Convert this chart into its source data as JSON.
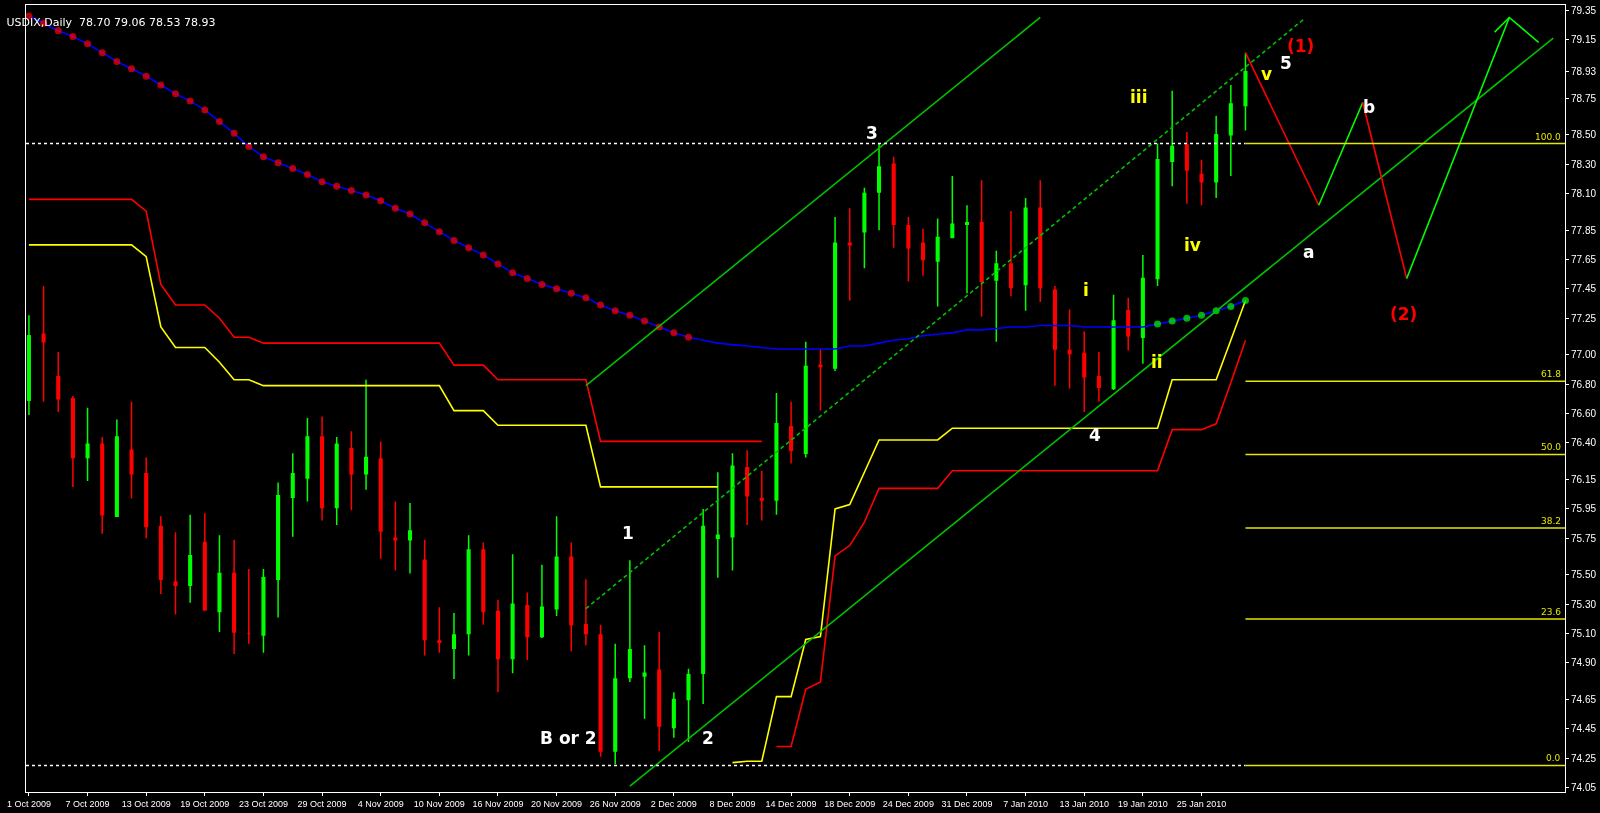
{
  "chart_data": {
    "type": "candlestick",
    "title": "USDIX,Daily  78.70 79.06 78.53 78.93",
    "categories": [
      "1 Oct 2009",
      null,
      null,
      null,
      "7 Oct 2009",
      null,
      null,
      null,
      "13 Oct 2009",
      null,
      null,
      null,
      "19 Oct 2009",
      null,
      null,
      null,
      "23 Oct 2009",
      null,
      null,
      null,
      "29 Oct 2009",
      null,
      null,
      null,
      "4 Nov 2009",
      null,
      null,
      null,
      "10 Nov 2009",
      null,
      null,
      null,
      "16 Nov 2009",
      null,
      null,
      null,
      "20 Nov 2009",
      null,
      null,
      null,
      "26 Nov 2009",
      null,
      null,
      null,
      "2 Dec 2009",
      null,
      null,
      null,
      "8 Dec 2009",
      null,
      null,
      null,
      "14 Dec 2009",
      null,
      null,
      null,
      "18 Dec 2009",
      null,
      null,
      null,
      "24 Dec 2009",
      null,
      null,
      null,
      "31 Dec 2009",
      null,
      null,
      null,
      "7 Jan 2010",
      null,
      null,
      null,
      "13 Jan 2010",
      null,
      null,
      null,
      "19 Jan 2010",
      null,
      null,
      null,
      "25 Jan 2010",
      null,
      null,
      null,
      null,
      null,
      null,
      null,
      null,
      null,
      null,
      null,
      null,
      null,
      null,
      null,
      null,
      null,
      null,
      null,
      null,
      null,
      null,
      null,
      null
    ],
    "ohlc": [
      [
        76.69,
        77.27,
        76.59,
        77.13
      ],
      [
        77.14,
        77.47,
        76.68,
        77.09
      ],
      [
        76.85,
        77.02,
        76.61,
        76.7
      ],
      [
        76.7,
        76.72,
        76.1,
        76.3
      ],
      [
        76.3,
        76.64,
        76.14,
        76.39
      ],
      [
        76.39,
        76.44,
        75.78,
        75.91
      ],
      [
        75.9,
        76.56,
        75.9,
        76.44
      ],
      [
        76.35,
        76.68,
        76.02,
        76.19
      ],
      [
        76.19,
        76.3,
        75.75,
        75.83
      ],
      [
        75.83,
        75.9,
        75.37,
        75.47
      ],
      [
        75.45,
        75.79,
        75.23,
        75.43
      ],
      [
        75.43,
        75.91,
        75.31,
        75.63
      ],
      [
        75.72,
        75.92,
        75.26,
        75.26
      ],
      [
        75.25,
        75.77,
        75.11,
        75.51
      ],
      [
        75.51,
        75.74,
        74.96,
        75.11
      ],
      [
        75.1,
        75.54,
        75.03,
        75.1
      ],
      [
        75.09,
        75.54,
        74.97,
        75.48
      ],
      [
        75.47,
        76.13,
        75.21,
        76.04
      ],
      [
        76.03,
        76.33,
        75.76,
        76.19
      ],
      [
        76.16,
        76.57,
        76.0,
        76.44
      ],
      [
        76.44,
        76.58,
        75.87,
        75.96
      ],
      [
        75.96,
        76.44,
        75.84,
        76.39
      ],
      [
        76.36,
        76.48,
        75.94,
        76.19
      ],
      [
        76.19,
        76.83,
        76.08,
        76.3
      ],
      [
        76.29,
        76.41,
        75.61,
        75.8
      ],
      [
        75.75,
        76.0,
        75.53,
        75.74
      ],
      [
        75.74,
        75.99,
        75.51,
        75.8
      ],
      [
        75.6,
        75.74,
        74.95,
        75.06
      ],
      [
        75.05,
        75.28,
        74.97,
        75.04
      ],
      [
        75.0,
        75.24,
        74.79,
        75.09
      ],
      [
        75.1,
        75.77,
        74.95,
        75.67
      ],
      [
        75.67,
        75.72,
        75.16,
        75.25
      ],
      [
        75.25,
        75.33,
        74.7,
        74.93
      ],
      [
        74.93,
        75.64,
        74.83,
        75.3
      ],
      [
        75.29,
        75.38,
        74.92,
        75.08
      ],
      [
        75.08,
        75.57,
        75.07,
        75.28
      ],
      [
        75.27,
        75.9,
        75.22,
        75.62
      ],
      [
        75.62,
        75.72,
        74.98,
        75.16
      ],
      [
        75.16,
        75.47,
        75.02,
        75.1
      ],
      [
        75.09,
        75.16,
        74.26,
        74.3
      ],
      [
        74.3,
        75.03,
        74.21,
        74.79
      ],
      [
        74.8,
        75.6,
        74.77,
        74.99
      ],
      [
        74.81,
        75.02,
        74.52,
        74.83
      ],
      [
        74.85,
        75.11,
        74.3,
        74.47
      ],
      [
        74.46,
        74.7,
        74.39,
        74.65
      ],
      [
        74.65,
        74.86,
        74.36,
        74.82
      ],
      [
        74.83,
        75.95,
        74.62,
        75.83
      ],
      [
        75.75,
        76.2,
        75.48,
        75.77
      ],
      [
        75.76,
        76.33,
        75.53,
        76.24
      ],
      [
        76.23,
        76.35,
        75.84,
        76.04
      ],
      [
        76.02,
        76.21,
        75.87,
        76.01
      ],
      [
        76.01,
        76.74,
        75.91,
        76.53
      ],
      [
        76.51,
        76.68,
        76.26,
        76.35
      ],
      [
        76.33,
        77.09,
        76.3,
        76.92
      ],
      [
        76.93,
        77.04,
        76.62,
        76.92
      ],
      [
        76.91,
        77.94,
        76.89,
        77.76
      ],
      [
        77.76,
        78.0,
        77.37,
        77.75
      ],
      [
        77.84,
        78.14,
        77.59,
        78.1
      ],
      [
        78.11,
        78.44,
        77.85,
        78.28
      ],
      [
        78.3,
        78.35,
        77.73,
        77.89
      ],
      [
        77.88,
        77.94,
        77.5,
        77.73
      ],
      [
        77.76,
        77.86,
        77.54,
        77.65
      ],
      [
        77.64,
        77.93,
        77.33,
        77.8
      ],
      [
        77.8,
        78.22,
        77.8,
        77.89
      ],
      [
        77.89,
        78.02,
        77.42,
        77.9
      ],
      [
        77.9,
        78.19,
        77.26,
        77.5
      ],
      [
        77.51,
        77.71,
        77.09,
        77.62
      ],
      [
        77.62,
        77.98,
        77.4,
        77.46
      ],
      [
        77.48,
        78.07,
        77.3,
        78.0
      ],
      [
        78.0,
        78.19,
        77.36,
        77.46
      ],
      [
        77.44,
        77.47,
        76.79,
        77.04
      ],
      [
        77.03,
        77.31,
        76.77,
        77.01
      ],
      [
        77.01,
        77.16,
        76.61,
        76.85
      ],
      [
        76.85,
        77.02,
        76.68,
        76.78
      ],
      [
        76.77,
        77.41,
        76.76,
        77.23
      ],
      [
        77.3,
        77.39,
        77.03,
        77.13
      ],
      [
        77.12,
        77.68,
        76.94,
        77.52
      ],
      [
        77.52,
        78.44,
        77.47,
        78.33
      ],
      [
        78.32,
        78.8,
        78.15,
        78.42
      ],
      [
        78.43,
        78.52,
        78.03,
        78.26
      ],
      [
        78.23,
        78.33,
        78.02,
        78.18
      ],
      [
        78.18,
        78.63,
        78.07,
        78.5
      ],
      [
        78.5,
        78.84,
        78.22,
        78.71
      ],
      [
        78.7,
        79.06,
        78.53,
        78.93
      ],
      null,
      null,
      null,
      null,
      null,
      null,
      null,
      null,
      null,
      null,
      null,
      null,
      null,
      null,
      null,
      null,
      null,
      null,
      null,
      null,
      null
    ],
    "colors": [
      "#00ff00",
      "#ff0000",
      "#ff0000",
      "#ff0000",
      "#00ff00",
      "#ff0000",
      "#00ff00",
      "#ff0000",
      "#ff0000",
      "#ff0000",
      "#ff0000",
      "#00ff00",
      "#ff0000",
      "#00ff00",
      "#ff0000",
      "#ff0000",
      "#00ff00",
      "#00ff00",
      "#00ff00",
      "#00ff00",
      "#ff0000",
      "#00ff00",
      "#ff0000",
      "#00ff00",
      "#ff0000",
      "#ff0000",
      "#00ff00",
      "#ff0000",
      "#ff0000",
      "#00ff00",
      "#00ff00",
      "#ff0000",
      "#ff0000",
      "#00ff00",
      "#ff0000",
      "#00ff00",
      "#00ff00",
      "#ff0000",
      "#ff0000",
      "#ff0000",
      "#00ff00",
      "#00ff00",
      "#00ff00",
      "#ff0000",
      "#00ff00",
      "#00ff00",
      "#00ff00",
      "#00ff00",
      "#00ff00",
      "#ff0000",
      "#ff0000",
      "#00ff00",
      "#ff0000",
      "#00ff00",
      "#ff0000",
      "#00ff00",
      "#ff0000",
      "#00ff00",
      "#00ff00",
      "#ff0000",
      "#ff0000",
      "#ff0000",
      "#00ff00",
      "#00ff00",
      "#00ff00",
      "#ff0000",
      "#00ff00",
      "#ff0000",
      "#00ff00",
      "#ff0000",
      "#ff0000",
      "#ff0000",
      "#ff0000",
      "#ff0000",
      "#00ff00",
      "#ff0000",
      "#00ff00",
      "#00ff00",
      "#00ff00",
      "#ff0000",
      "#ff0000",
      "#00ff00",
      "#00ff00",
      "#00ff00",
      null,
      null,
      null,
      null,
      null,
      null,
      null,
      null,
      null,
      null,
      null,
      null,
      null,
      null,
      null,
      null,
      null,
      null,
      null,
      null,
      null
    ],
    "series": [
      {
        "type": "line",
        "color": "#ff0000",
        "values": [
          78.06,
          78.06,
          78.06,
          78.06,
          78.06,
          78.06,
          78.06,
          78.06,
          77.98,
          77.48,
          77.34,
          77.34,
          77.34,
          77.25,
          77.12,
          77.12,
          77.08,
          77.08,
          77.08,
          77.08,
          77.08,
          77.08,
          77.08,
          77.08,
          77.08,
          77.08,
          77.08,
          77.08,
          77.08,
          76.93,
          76.93,
          76.93,
          76.83,
          76.83,
          76.83,
          76.83,
          76.83,
          76.83,
          76.83,
          76.41,
          76.41,
          76.41,
          76.41,
          76.41,
          76.41,
          76.41,
          76.41,
          76.41,
          76.41,
          76.41,
          76.41,
          null,
          null,
          null,
          null,
          null,
          null,
          null,
          null,
          null,
          null,
          null,
          null,
          null,
          null,
          null,
          null,
          null,
          null,
          null,
          null,
          null,
          null,
          null,
          null,
          null,
          null,
          null,
          null,
          null,
          null,
          null,
          null,
          null,
          null,
          null,
          null,
          null,
          null,
          null,
          null,
          null,
          null,
          null,
          null,
          null,
          null,
          null,
          null,
          null,
          null,
          null,
          null,
          null,
          null
        ]
      },
      {
        "type": "line",
        "color": "#ff0000",
        "values": [
          null,
          null,
          null,
          null,
          null,
          null,
          null,
          null,
          null,
          null,
          null,
          null,
          null,
          null,
          null,
          null,
          null,
          null,
          null,
          null,
          null,
          null,
          null,
          null,
          null,
          null,
          null,
          null,
          null,
          null,
          null,
          null,
          null,
          null,
          null,
          null,
          null,
          null,
          null,
          null,
          null,
          null,
          null,
          null,
          null,
          null,
          null,
          null,
          null,
          null,
          null,
          74.33,
          74.33,
          74.72,
          74.77,
          75.63,
          75.7,
          75.86,
          76.09,
          76.09,
          76.09,
          76.09,
          76.09,
          76.21,
          76.21,
          76.21,
          76.21,
          76.21,
          76.21,
          76.21,
          76.21,
          76.21,
          76.21,
          76.21,
          76.21,
          76.21,
          76.21,
          76.21,
          76.49,
          76.49,
          76.49,
          76.53,
          76.81,
          77.1,
          null,
          null,
          null,
          null,
          null,
          null,
          null,
          null,
          null,
          null,
          null,
          null,
          null,
          null,
          null,
          null,
          null,
          null,
          null,
          null,
          null
        ]
      },
      {
        "type": "line",
        "color": "#ffff00",
        "values": [
          77.75,
          77.75,
          77.75,
          77.75,
          77.75,
          77.75,
          77.75,
          77.75,
          77.67,
          77.19,
          77.05,
          77.05,
          77.05,
          76.95,
          76.83,
          76.83,
          76.79,
          76.79,
          76.79,
          76.79,
          76.79,
          76.79,
          76.79,
          76.79,
          76.79,
          76.79,
          76.79,
          76.79,
          76.79,
          76.62,
          76.62,
          76.62,
          76.52,
          76.52,
          76.52,
          76.52,
          76.52,
          76.52,
          76.52,
          76.1,
          76.1,
          76.1,
          76.1,
          76.1,
          76.1,
          76.1,
          76.1,
          76.1,
          null,
          null,
          null,
          null,
          null,
          null,
          null,
          null,
          null,
          null,
          null,
          null,
          null,
          null,
          null,
          null,
          null,
          null,
          null,
          null,
          null,
          null,
          null,
          null,
          null,
          null,
          null,
          null,
          null,
          null,
          null,
          null,
          null,
          null,
          null,
          null,
          null,
          null,
          null,
          null,
          null,
          null,
          null,
          null,
          null,
          null,
          null,
          null,
          null,
          null,
          null,
          null,
          null,
          null,
          null,
          null,
          null
        ]
      },
      {
        "type": "line",
        "color": "#ffff00",
        "values": [
          null,
          null,
          null,
          null,
          null,
          null,
          null,
          null,
          null,
          null,
          null,
          null,
          null,
          null,
          null,
          null,
          null,
          null,
          null,
          null,
          null,
          null,
          null,
          null,
          null,
          null,
          null,
          null,
          null,
          null,
          null,
          null,
          null,
          null,
          null,
          null,
          null,
          null,
          null,
          null,
          null,
          null,
          null,
          null,
          null,
          null,
          null,
          null,
          74.22,
          74.23,
          74.23,
          74.67,
          74.67,
          75.06,
          75.08,
          75.95,
          75.98,
          76.2,
          76.42,
          76.42,
          76.42,
          76.42,
          76.42,
          76.5,
          76.5,
          76.5,
          76.5,
          76.5,
          76.5,
          76.5,
          76.5,
          76.5,
          76.5,
          76.5,
          76.5,
          76.5,
          76.5,
          76.5,
          76.83,
          76.83,
          76.83,
          76.83,
          77.1,
          77.37,
          null,
          null,
          null,
          null,
          null,
          null,
          null,
          null,
          null,
          null,
          null,
          null,
          null,
          null,
          null,
          null,
          null,
          null,
          null,
          null,
          null
        ]
      },
      {
        "type": "line",
        "color": "#0000ff",
        "marker": "circle",
        "values": [
          79.31,
          79.26,
          79.21,
          79.17,
          79.12,
          79.06,
          79.0,
          78.95,
          78.9,
          78.84,
          78.78,
          78.73,
          78.67,
          78.59,
          78.51,
          78.42,
          78.35,
          78.31,
          78.27,
          78.23,
          78.18,
          78.15,
          78.12,
          78.09,
          78.05,
          78.0,
          77.96,
          77.9,
          77.84,
          77.78,
          77.73,
          77.68,
          77.62,
          77.56,
          77.52,
          77.48,
          77.45,
          77.42,
          77.39,
          77.34,
          77.3,
          77.27,
          77.23,
          77.19,
          77.15,
          77.12,
          77.1,
          77.08,
          77.07,
          77.06,
          77.05,
          77.04,
          77.04,
          77.04,
          77.04,
          77.04,
          77.06,
          77.06,
          77.08,
          77.1,
          77.11,
          77.13,
          77.14,
          77.15,
          77.17,
          77.17,
          77.18,
          77.19,
          77.19,
          77.2,
          77.2,
          77.2,
          77.19,
          77.19,
          77.19,
          77.19,
          77.19,
          77.21,
          77.23,
          77.25,
          77.27,
          77.3,
          77.33,
          77.37,
          null,
          null,
          null,
          null,
          null,
          null,
          null,
          null,
          null,
          null,
          null,
          null,
          null,
          null,
          null,
          null,
          null,
          null,
          null,
          null,
          null
        ],
        "colors": [
          "#ff0000",
          "#ff0000",
          "#ff0000",
          "#ff0000",
          "#ff0000",
          "#ff0000",
          "#ff0000",
          "#ff0000",
          "#ff0000",
          "#ff0000",
          "#ff0000",
          "#ff0000",
          "#ff0000",
          "#ff0000",
          "#ff0000",
          "#ff0000",
          "#ff0000",
          "#ff0000",
          "#ff0000",
          "#ff0000",
          "#ff0000",
          "#ff0000",
          "#ff0000",
          "#ff0000",
          "#ff0000",
          "#ff0000",
          "#ff0000",
          "#ff0000",
          "#ff0000",
          "#ff0000",
          "#ff0000",
          "#ff0000",
          "#ff0000",
          "#ff0000",
          "#ff0000",
          "#ff0000",
          "#ff0000",
          "#ff0000",
          "#ff0000",
          "#ff0000",
          "#ff0000",
          "#ff0000",
          "#ff0000",
          "#ff0000",
          "#ff0000",
          "#ff0000",
          null,
          null,
          null,
          null,
          null,
          null,
          null,
          null,
          null,
          null,
          null,
          null,
          null,
          null,
          null,
          null,
          null,
          null,
          null,
          null,
          null,
          null,
          null,
          null,
          null,
          null,
          null,
          null,
          null,
          null,
          null,
          "#00ff00",
          "#00ff00",
          "#00ff00",
          "#00ff00",
          "#00ff00",
          "#00ff00",
          "#00ff00",
          null,
          null,
          null,
          null,
          null,
          null,
          null,
          null,
          null,
          null,
          null,
          null,
          null,
          null,
          null,
          null,
          null,
          null,
          null,
          null,
          null
        ]
      },
      {
        "type": "line",
        "color": "#00c000",
        "values": [
          null,
          null,
          null,
          null,
          null,
          null,
          null,
          null,
          null,
          null,
          null,
          null,
          null,
          null,
          null,
          null,
          null,
          null,
          null,
          null,
          null,
          null,
          null,
          null,
          null,
          null,
          null,
          null,
          null,
          null,
          null,
          null,
          null,
          null,
          null,
          null,
          null,
          null,
          76.79,
          null,
          null,
          null,
          null,
          null,
          null,
          null,
          null,
          null,
          null,
          null,
          null,
          null,
          null,
          null,
          null,
          null,
          null,
          null,
          null,
          null,
          null,
          null,
          null,
          null,
          null,
          null,
          null,
          null,
          null,
          79.3,
          null,
          null,
          null,
          null,
          null,
          null,
          null,
          null,
          null,
          null,
          null,
          null,
          null,
          null,
          null,
          null,
          null,
          null,
          null,
          null,
          null,
          null,
          null,
          null,
          null,
          null,
          null,
          null,
          null,
          null,
          null,
          null,
          null,
          null,
          null
        ]
      },
      {
        "type": "line",
        "color": "#00c000",
        "values": [
          null,
          null,
          null,
          null,
          null,
          null,
          null,
          null,
          null,
          null,
          null,
          null,
          null,
          null,
          null,
          null,
          null,
          null,
          null,
          null,
          null,
          null,
          null,
          null,
          null,
          null,
          null,
          null,
          null,
          null,
          null,
          null,
          null,
          null,
          null,
          null,
          null,
          null,
          null,
          null,
          null,
          74.06,
          null,
          null,
          null,
          null,
          null,
          null,
          null,
          null,
          null,
          null,
          null,
          null,
          null,
          null,
          null,
          null,
          null,
          null,
          null,
          null,
          null,
          null,
          null,
          null,
          null,
          null,
          null,
          null,
          null,
          null,
          null,
          null,
          null,
          null,
          null,
          null,
          null,
          null,
          null,
          null,
          null,
          null,
          null,
          null,
          null,
          null,
          null,
          null,
          null,
          null,
          null,
          null,
          null,
          null,
          null,
          null,
          null,
          null,
          null,
          null,
          null,
          null,
          79.16
        ]
      },
      {
        "type": "line",
        "color": "#00c000",
        "line_style": "dashed",
        "values": [
          null,
          null,
          null,
          null,
          null,
          null,
          null,
          null,
          null,
          null,
          null,
          null,
          null,
          null,
          null,
          null,
          null,
          null,
          null,
          null,
          null,
          null,
          null,
          null,
          null,
          null,
          null,
          null,
          null,
          null,
          null,
          null,
          null,
          null,
          null,
          null,
          null,
          null,
          75.27,
          null,
          null,
          null,
          null,
          null,
          null,
          null,
          null,
          null,
          null,
          null,
          null,
          null,
          null,
          null,
          null,
          null,
          null,
          null,
          null,
          null,
          null,
          null,
          null,
          null,
          null,
          null,
          null,
          null,
          null,
          null,
          null,
          null,
          null,
          null,
          null,
          null,
          null,
          null,
          null,
          null,
          null,
          null,
          null,
          null,
          null,
          null,
          null,
          79.29,
          null,
          null,
          null,
          null,
          null,
          null,
          null,
          null,
          null,
          null,
          null,
          null,
          null,
          null,
          null,
          null,
          null
        ]
      },
      {
        "type": "line",
        "color": "#ff0000",
        "values": [
          null,
          null,
          null,
          null,
          null,
          null,
          null,
          null,
          null,
          null,
          null,
          null,
          null,
          null,
          null,
          null,
          null,
          null,
          null,
          null,
          null,
          null,
          null,
          null,
          null,
          null,
          null,
          null,
          null,
          null,
          null,
          null,
          null,
          null,
          null,
          null,
          null,
          null,
          null,
          null,
          null,
          null,
          null,
          null,
          null,
          null,
          null,
          null,
          null,
          null,
          null,
          null,
          null,
          null,
          null,
          null,
          null,
          null,
          null,
          null,
          null,
          null,
          null,
          null,
          null,
          null,
          null,
          null,
          null,
          null,
          null,
          null,
          null,
          null,
          null,
          null,
          null,
          null,
          null,
          null,
          null,
          null,
          null,
          79.06,
          null,
          null,
          null,
          null,
          78.02,
          null,
          null,
          null,
          null,
          null,
          null,
          null,
          null,
          null,
          null,
          null,
          null,
          null,
          null,
          null,
          null
        ]
      },
      {
        "type": "line",
        "color": "#00ff00",
        "values": [
          null,
          null,
          null,
          null,
          null,
          null,
          null,
          null,
          null,
          null,
          null,
          null,
          null,
          null,
          null,
          null,
          null,
          null,
          null,
          null,
          null,
          null,
          null,
          null,
          null,
          null,
          null,
          null,
          null,
          null,
          null,
          null,
          null,
          null,
          null,
          null,
          null,
          null,
          null,
          null,
          null,
          null,
          null,
          null,
          null,
          null,
          null,
          null,
          null,
          null,
          null,
          null,
          null,
          null,
          null,
          null,
          null,
          null,
          null,
          null,
          null,
          null,
          null,
          null,
          null,
          null,
          null,
          null,
          null,
          null,
          null,
          null,
          null,
          null,
          null,
          null,
          null,
          null,
          null,
          null,
          null,
          null,
          null,
          null,
          null,
          null,
          null,
          null,
          78.02,
          null,
          null,
          78.72,
          null,
          null,
          null,
          null,
          null,
          null,
          null,
          null,
          null,
          null,
          null,
          null,
          null
        ]
      },
      {
        "type": "line",
        "color": "#ff0000",
        "values": [
          null,
          null,
          null,
          null,
          null,
          null,
          null,
          null,
          null,
          null,
          null,
          null,
          null,
          null,
          null,
          null,
          null,
          null,
          null,
          null,
          null,
          null,
          null,
          null,
          null,
          null,
          null,
          null,
          null,
          null,
          null,
          null,
          null,
          null,
          null,
          null,
          null,
          null,
          null,
          null,
          null,
          null,
          null,
          null,
          null,
          null,
          null,
          null,
          null,
          null,
          null,
          null,
          null,
          null,
          null,
          null,
          null,
          null,
          null,
          null,
          null,
          null,
          null,
          null,
          null,
          null,
          null,
          null,
          null,
          null,
          null,
          null,
          null,
          null,
          null,
          null,
          null,
          null,
          null,
          null,
          null,
          null,
          null,
          null,
          null,
          null,
          null,
          null,
          null,
          null,
          null,
          78.72,
          null,
          null,
          77.52,
          null,
          null,
          null,
          null,
          null,
          null,
          null,
          null,
          null,
          null
        ]
      },
      {
        "type": "line",
        "color": "#00ff00",
        "values": [
          null,
          null,
          null,
          null,
          null,
          null,
          null,
          null,
          null,
          null,
          null,
          null,
          null,
          null,
          null,
          null,
          null,
          null,
          null,
          null,
          null,
          null,
          null,
          null,
          null,
          null,
          null,
          null,
          null,
          null,
          null,
          null,
          null,
          null,
          null,
          null,
          null,
          null,
          null,
          null,
          null,
          null,
          null,
          null,
          null,
          null,
          null,
          null,
          null,
          null,
          null,
          null,
          null,
          null,
          null,
          null,
          null,
          null,
          null,
          null,
          null,
          null,
          null,
          null,
          null,
          null,
          null,
          null,
          null,
          null,
          null,
          null,
          null,
          null,
          null,
          null,
          null,
          null,
          null,
          null,
          null,
          null,
          null,
          null,
          null,
          null,
          null,
          null,
          null,
          null,
          null,
          null,
          null,
          null,
          77.52,
          null,
          null,
          null,
          null,
          null,
          null,
          79.3,
          null,
          null,
          null
        ]
      },
      {
        "type": "line",
        "color": "#00ff00",
        "values": [
          null,
          null,
          null,
          null,
          null,
          null,
          null,
          null,
          null,
          null,
          null,
          null,
          null,
          null,
          null,
          null,
          null,
          null,
          null,
          null,
          null,
          null,
          null,
          null,
          null,
          null,
          null,
          null,
          null,
          null,
          null,
          null,
          null,
          null,
          null,
          null,
          null,
          null,
          null,
          null,
          null,
          null,
          null,
          null,
          null,
          null,
          null,
          null,
          null,
          null,
          null,
          null,
          null,
          null,
          null,
          null,
          null,
          null,
          null,
          null,
          null,
          null,
          null,
          null,
          null,
          null,
          null,
          null,
          null,
          null,
          null,
          null,
          null,
          null,
          null,
          null,
          null,
          null,
          null,
          null,
          null,
          null,
          null,
          null,
          null,
          null,
          null,
          null,
          null,
          null,
          null,
          null,
          null,
          null,
          null,
          null,
          null,
          null,
          null,
          null,
          79.2,
          79.3,
          null,
          79.13,
          null
        ]
      }
    ],
    "ylim": [
      74.02,
      79.385
    ],
    "yticks": [
      {
        "value": 79.35,
        "label": "79.35"
      },
      79.15,
      78.93,
      78.75,
      {
        "value": 78.5,
        "label": "78.50"
      },
      {
        "value": 78.3,
        "label": "78.30"
      },
      {
        "value": 78.1,
        "label": "78.10"
      },
      77.85,
      77.65,
      77.45,
      77.25,
      {
        "value": 77.0,
        "label": "77.00"
      },
      {
        "value": 76.8,
        "label": "76.80"
      },
      {
        "value": 76.6,
        "label": "76.60"
      },
      {
        "value": 76.4,
        "label": "76.40"
      },
      76.15,
      75.95,
      75.75,
      {
        "value": 75.5,
        "label": "75.50"
      },
      {
        "value": 75.3,
        "label": "75.30"
      },
      {
        "value": 75.1,
        "label": "75.10"
      },
      {
        "value": 74.9,
        "label": "74.90"
      },
      74.65,
      74.45,
      74.25,
      74.05
    ],
    "ref_lines": [
      {
        "axis": "y",
        "value": 78.44,
        "color": "#ffffff",
        "line_style": "dotted"
      },
      {
        "axis": "y",
        "value": 74.2,
        "color": "#ffffff",
        "line_style": "dotted"
      },
      {
        "axis": "y",
        "value": 78.44,
        "color": "#e6e600"
      },
      {
        "axis": "y",
        "value": 76.82,
        "color": "#e6e600"
      },
      {
        "axis": "y",
        "value": 76.32,
        "color": "#e6e600"
      },
      {
        "axis": "y",
        "value": 75.82,
        "color": "#e6e600"
      },
      {
        "axis": "y",
        "value": 75.2,
        "color": "#e6e600"
      },
      {
        "axis": "y",
        "value": 74.2,
        "color": "#e6e600"
      }
    ],
    "annotations": [
      "B or 2",
      "1",
      "2",
      "3",
      "4",
      "i",
      "ii",
      "iii",
      "iv",
      "v",
      "5",
      "(1)",
      "a",
      "b",
      "(2)",
      "100.0",
      "61.8",
      "50.0",
      "38.2",
      "23.6",
      "0.0"
    ]
  }
}
